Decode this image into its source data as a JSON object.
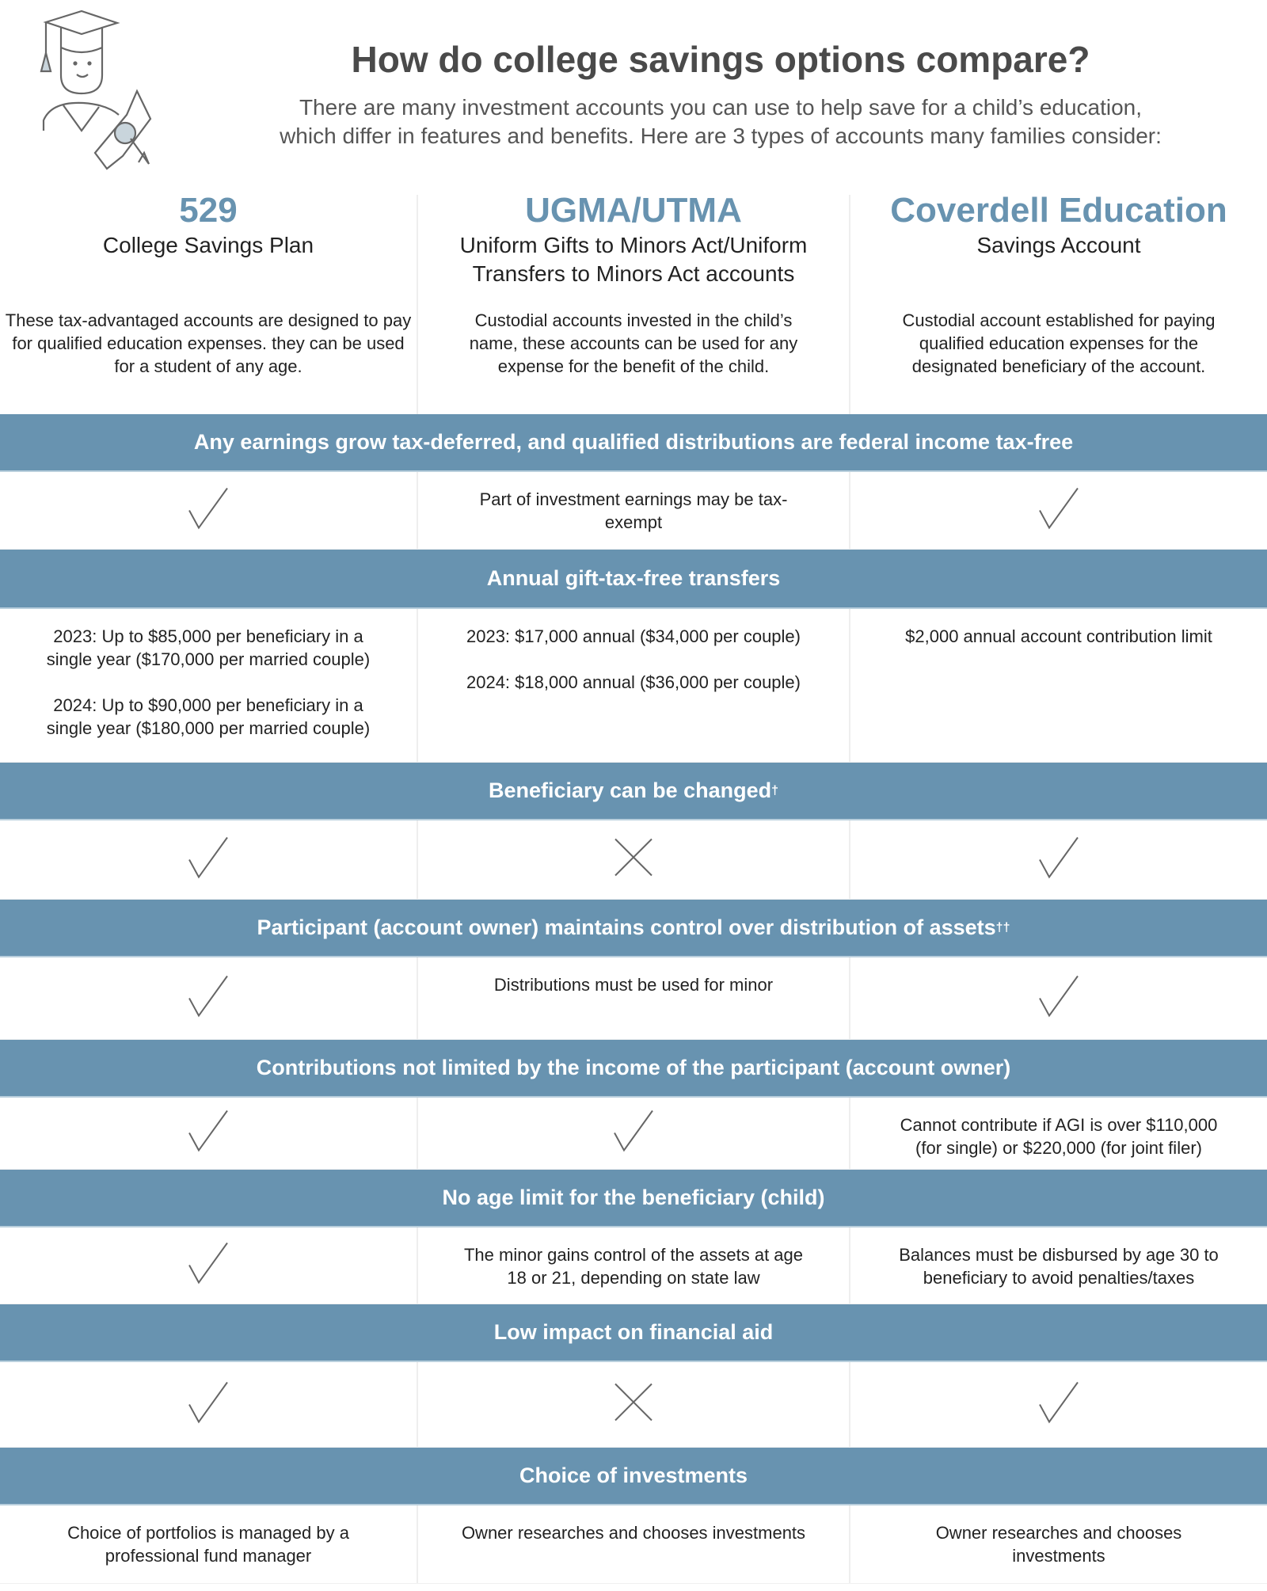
{
  "header": {
    "title": "How do college savings options compare?",
    "subtitle_lines": [
      "There are many investment accounts you can use to help save for a child’s education,",
      "which differ in features and benefits. Here are 3 types of accounts many families consider:"
    ],
    "illustration": "graduate-with-diploma-icon"
  },
  "accent_color": "#6893b0",
  "columns": [
    {
      "name": "529",
      "subtitle": "College Savings Plan",
      "subtitle2": "",
      "description": "These tax-advantaged accounts are designed to pay for qualified education expenses. they can be used for a student of any age."
    },
    {
      "name": "UGMA/UTMA",
      "subtitle": "Uniform Gifts to Minors Act/Uniform",
      "subtitle2": "Transfers to Minors Act accounts",
      "description": "Custodial accounts invested in the child’s name, these accounts can be used for any expense for the benefit of the child."
    },
    {
      "name": "Coverdell Education",
      "subtitle": "Savings Account",
      "subtitle2": "",
      "description": "Custodial account established for paying qualified education expenses for the designated beneficiary of the account."
    }
  ],
  "rows": [
    {
      "feature": "Any earnings grow tax-deferred, and qualified distributions are federal income tax-free",
      "sup": "",
      "cells": [
        {
          "mark": "check"
        },
        {
          "text": "Part of investment earnings may be tax-exempt"
        },
        {
          "mark": "check"
        }
      ]
    },
    {
      "feature": "Annual gift-tax-free transfers",
      "sup": "",
      "cells": [
        {
          "text": "2023: Up to $85,000 per beneficiary in a single year ($170,000 per married couple)",
          "text2": "2024: Up to $90,000 per beneficiary in a single year ($180,000 per married couple)"
        },
        {
          "text": "2023: $17,000 annual ($34,000 per couple)",
          "text2": "2024: $18,000 annual ($36,000 per couple)"
        },
        {
          "text": "$2,000 annual account contribution limit"
        }
      ]
    },
    {
      "feature": "Beneficiary can be changed",
      "sup": "†",
      "cells": [
        {
          "mark": "check"
        },
        {
          "mark": "cross"
        },
        {
          "mark": "check"
        }
      ]
    },
    {
      "feature": "Participant (account owner) maintains control over distribution of assets",
      "sup": "††",
      "cells": [
        {
          "mark": "check"
        },
        {
          "text": "Distributions must be used for minor"
        },
        {
          "mark": "check"
        }
      ]
    },
    {
      "feature": "Contributions not limited by the income of the participant (account owner)",
      "sup": "",
      "cells": [
        {
          "mark": "check"
        },
        {
          "mark": "check"
        },
        {
          "text": "Cannot contribute if AGI is over $110,000 (for single) or $220,000 (for joint filer)"
        }
      ]
    },
    {
      "feature": "No age limit for the beneficiary (child)",
      "sup": "",
      "cells": [
        {
          "mark": "check"
        },
        {
          "text": "The minor gains control of the assets at age 18 or 21, depending on state law"
        },
        {
          "text": "Balances must be disbursed by age 30 to beneficiary to avoid penalties/taxes"
        }
      ]
    },
    {
      "feature": "Low impact on financial aid",
      "sup": "",
      "cells": [
        {
          "mark": "check"
        },
        {
          "mark": "cross"
        },
        {
          "mark": "check"
        }
      ]
    },
    {
      "feature": "Choice of investments",
      "sup": "",
      "cells": [
        {
          "text": "Choice of portfolios is managed by a professional fund manager"
        },
        {
          "text": "Owner researches and chooses investments"
        },
        {
          "text": "Owner researches and chooses investments"
        }
      ]
    }
  ]
}
